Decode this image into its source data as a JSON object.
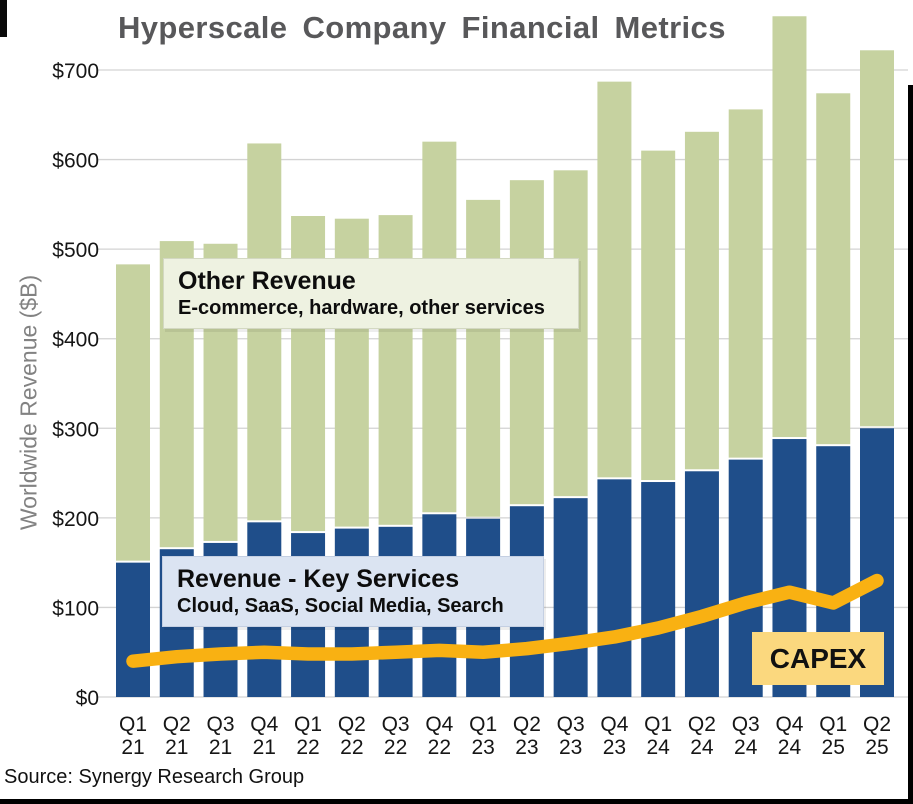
{
  "title": "Hyperscale Company Financial Metrics",
  "y_axis_title": "Worldwide Revenue ($B)",
  "source": "Source: Synergy Research Group",
  "annotations": {
    "other_revenue": {
      "title": "Other Revenue",
      "subtitle": "E-commerce, hardware, other services"
    },
    "key_services": {
      "title": "Revenue - Key Services",
      "subtitle": "Cloud, SaaS, Social Media, Search"
    },
    "capex_label": "CAPEX"
  },
  "colors": {
    "key_services_bar": "#1F4E8A",
    "other_revenue_bar": "#C6D2A0",
    "capex_line": "#F9B112",
    "capex_box_bg": "#FBD87E",
    "other_box_bg": "#EEF2E1",
    "key_box_bg": "#DBE4F2",
    "title_text": "#58585A",
    "axis_text": "#161616",
    "y_axis_title_text": "#828282",
    "gridline": "#D3D3D3"
  },
  "chart_data": {
    "type": "bar",
    "stacked": true,
    "title": "Hyperscale Company Financial Metrics",
    "xlabel": "",
    "ylabel": "Worldwide Revenue ($B)",
    "ylim": [
      0,
      700
    ],
    "yticks": [
      0,
      100,
      200,
      300,
      400,
      500,
      600,
      700
    ],
    "ytick_prefix": "$",
    "grid": true,
    "legend_position": "annotation-boxes-on-plot",
    "categories": [
      "Q1 21",
      "Q2 21",
      "Q3 21",
      "Q4 21",
      "Q1 22",
      "Q2 22",
      "Q3 22",
      "Q4 22",
      "Q1 23",
      "Q2 23",
      "Q3 23",
      "Q4 23",
      "Q1 24",
      "Q2 24",
      "Q3 24",
      "Q4 24",
      "Q1 25",
      "Q2 25"
    ],
    "series": [
      {
        "name": "Revenue - Key Services",
        "type": "bar",
        "color": "#1F4E8A",
        "values": [
          150,
          165,
          172,
          195,
          183,
          188,
          190,
          204,
          199,
          213,
          222,
          243,
          240,
          252,
          265,
          288,
          280,
          300
        ]
      },
      {
        "name": "Other Revenue",
        "type": "bar",
        "color": "#C6D2A0",
        "values": [
          333,
          344,
          334,
          423,
          354,
          346,
          348,
          416,
          356,
          364,
          366,
          444,
          370,
          379,
          391,
          472,
          394,
          422
        ]
      },
      {
        "name": "CAPEX",
        "type": "line",
        "color": "#F9B112",
        "values": [
          40,
          45,
          48,
          50,
          48,
          48,
          50,
          52,
          50,
          54,
          60,
          67,
          77,
          90,
          105,
          117,
          105,
          130
        ]
      }
    ]
  }
}
